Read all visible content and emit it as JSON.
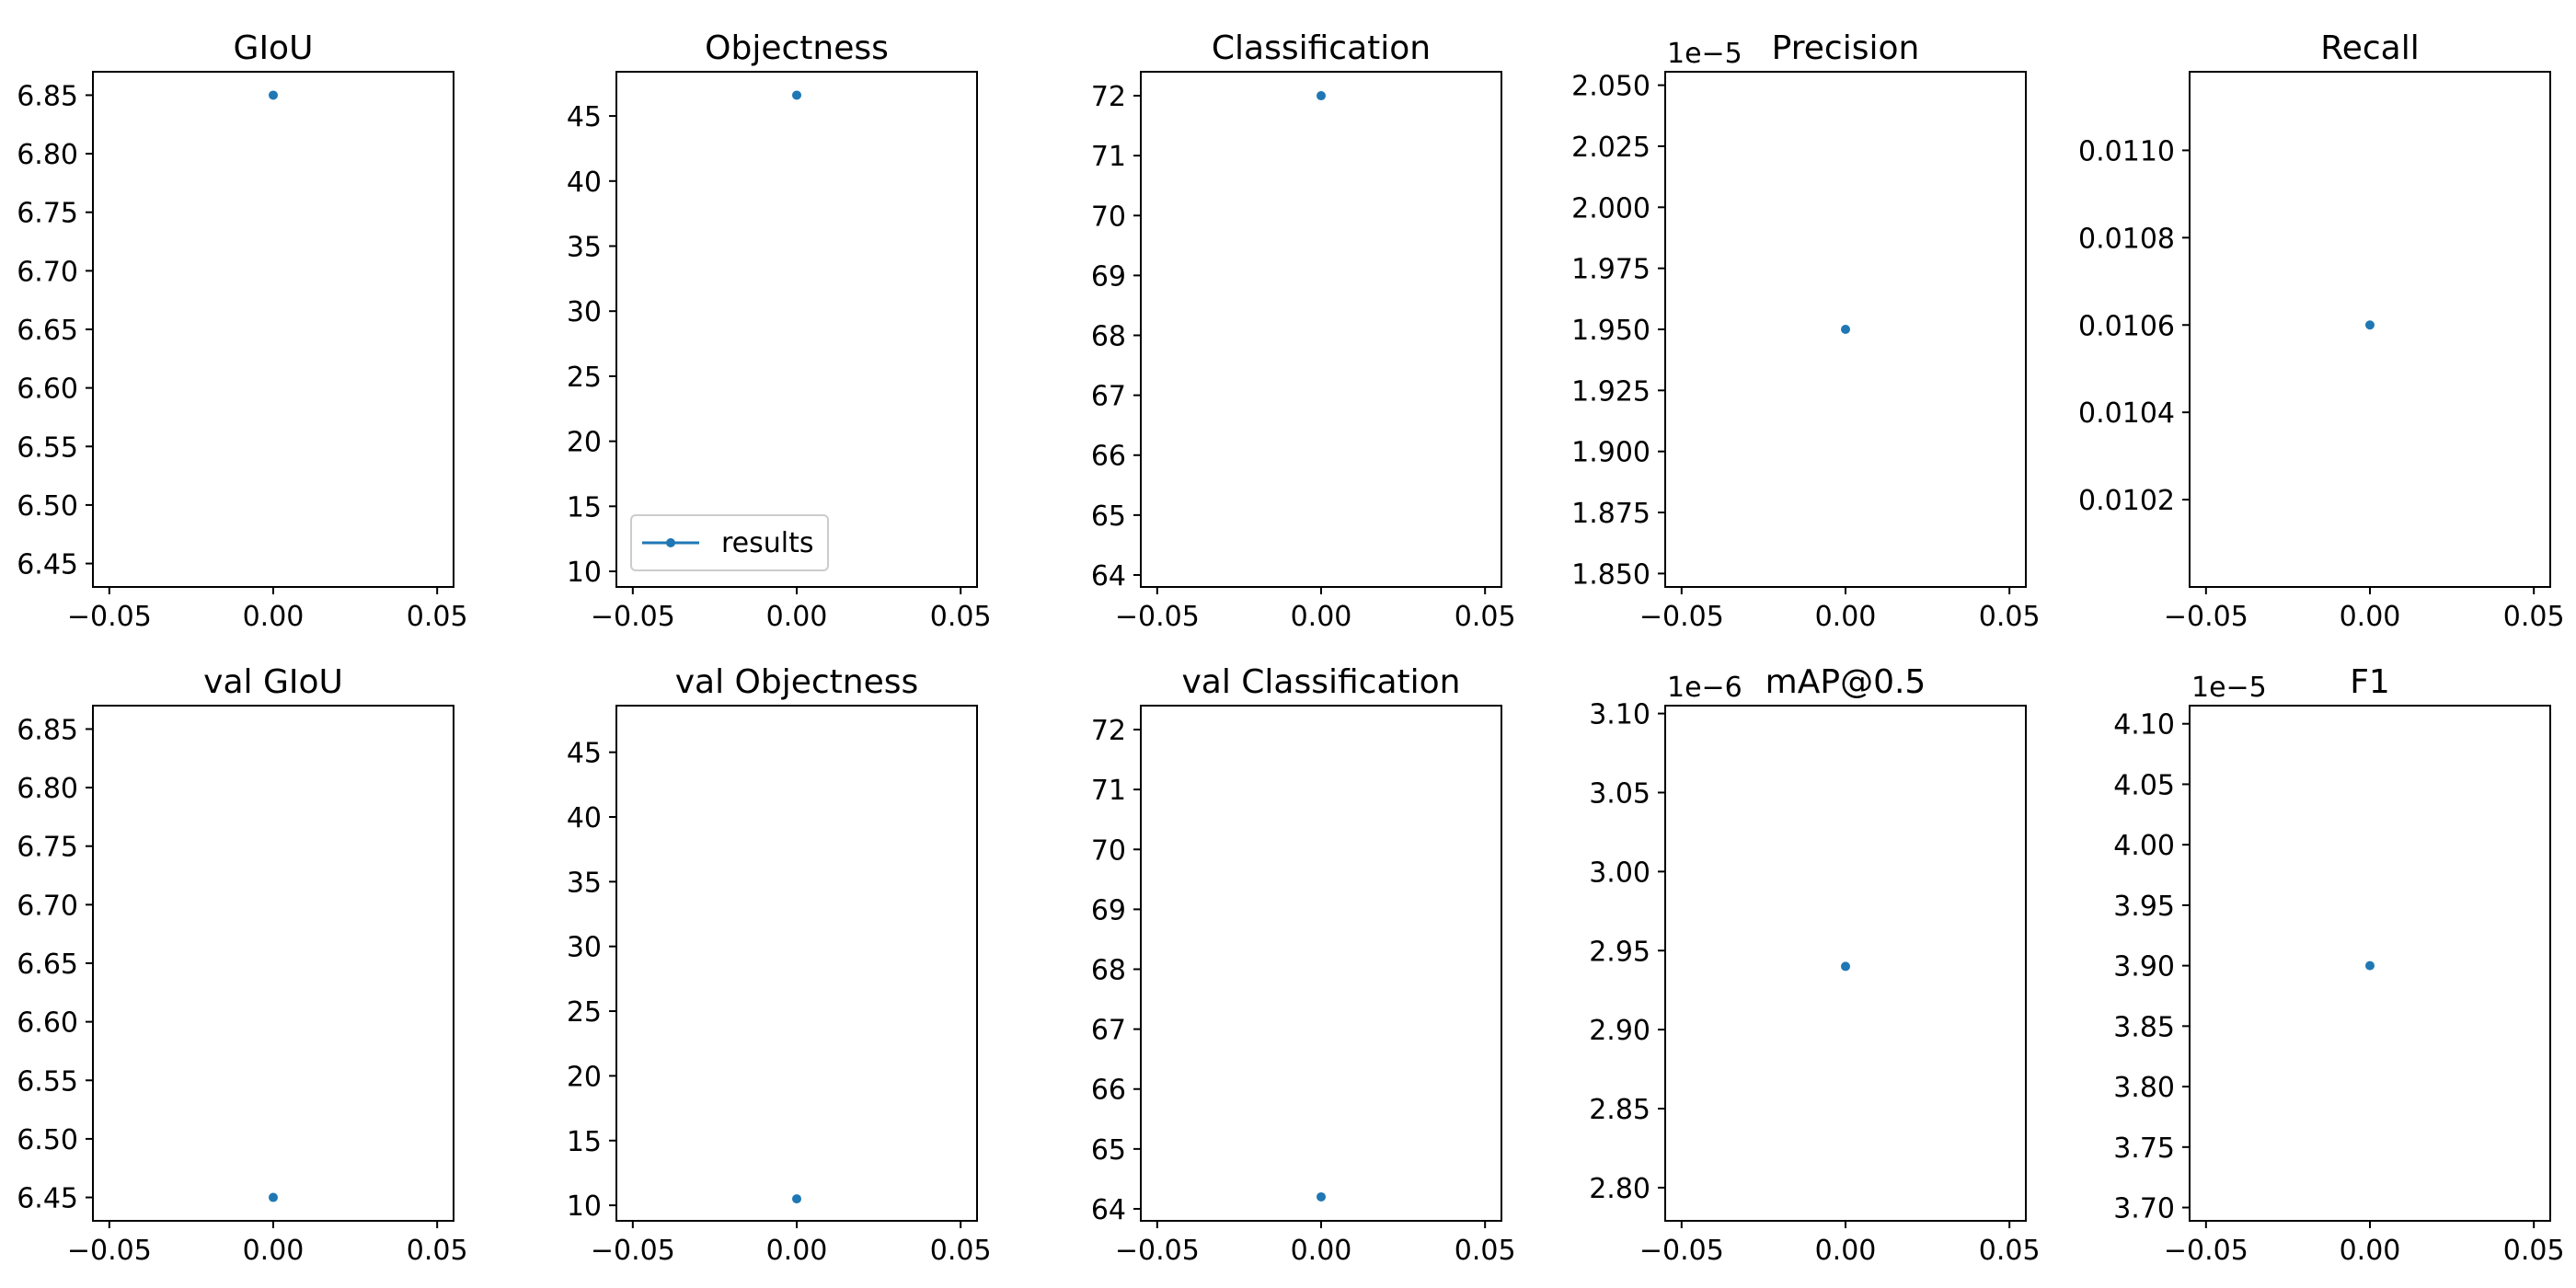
{
  "colors": {
    "series": "#1f77b4",
    "axes": "#000000",
    "background": "#ffffff",
    "legend_border": "#cccccc"
  },
  "chart_data": [
    {
      "type": "line",
      "title": "GIoU",
      "series": [
        {
          "name": "results",
          "x": [
            0.0
          ],
          "y": [
            6.85
          ]
        }
      ],
      "xlim": [
        -0.055,
        0.055
      ],
      "ylim": [
        6.43,
        6.87
      ],
      "xticks": [
        -0.05,
        0.0,
        0.05
      ],
      "xtick_labels": [
        "−0.05",
        "0.00",
        "0.05"
      ],
      "yticks": [
        6.45,
        6.5,
        6.55,
        6.6,
        6.65,
        6.7,
        6.75,
        6.8,
        6.85
      ],
      "ytick_labels": [
        "6.45",
        "6.50",
        "6.55",
        "6.60",
        "6.65",
        "6.70",
        "6.75",
        "6.80",
        "6.85"
      ],
      "offset_text": "",
      "legend": false
    },
    {
      "type": "line",
      "title": "Objectness",
      "series": [
        {
          "name": "results",
          "x": [
            0.0
          ],
          "y": [
            46.6
          ]
        }
      ],
      "xlim": [
        -0.055,
        0.055
      ],
      "ylim": [
        8.8,
        48.4
      ],
      "xticks": [
        -0.05,
        0.0,
        0.05
      ],
      "xtick_labels": [
        "−0.05",
        "0.00",
        "0.05"
      ],
      "yticks": [
        10,
        15,
        20,
        25,
        30,
        35,
        40,
        45
      ],
      "ytick_labels": [
        "10",
        "15",
        "20",
        "25",
        "30",
        "35",
        "40",
        "45"
      ],
      "offset_text": "",
      "legend": true,
      "legend_placement": "lower-left"
    },
    {
      "type": "line",
      "title": "Classification",
      "series": [
        {
          "name": "results",
          "x": [
            0.0
          ],
          "y": [
            72.0
          ]
        }
      ],
      "xlim": [
        -0.055,
        0.055
      ],
      "ylim": [
        63.8,
        72.4
      ],
      "xticks": [
        -0.05,
        0.0,
        0.05
      ],
      "xtick_labels": [
        "−0.05",
        "0.00",
        "0.05"
      ],
      "yticks": [
        64,
        65,
        66,
        67,
        68,
        69,
        70,
        71,
        72
      ],
      "ytick_labels": [
        "64",
        "65",
        "66",
        "67",
        "68",
        "69",
        "70",
        "71",
        "72"
      ],
      "offset_text": "",
      "legend": false
    },
    {
      "type": "line",
      "title": "Precision",
      "series": [
        {
          "name": "results",
          "x": [
            0.0
          ],
          "y": [
            1.95
          ]
        }
      ],
      "xlim": [
        -0.055,
        0.055
      ],
      "ylim": [
        1.8445,
        2.0555
      ],
      "xticks": [
        -0.05,
        0.0,
        0.05
      ],
      "xtick_labels": [
        "−0.05",
        "0.00",
        "0.05"
      ],
      "yticks": [
        1.85,
        1.875,
        1.9,
        1.925,
        1.95,
        1.975,
        2.0,
        2.025,
        2.05
      ],
      "ytick_labels": [
        "1.850",
        "1.875",
        "1.900",
        "1.925",
        "1.950",
        "1.975",
        "2.000",
        "2.025",
        "2.050"
      ],
      "offset_text": "1e−5",
      "legend": false
    },
    {
      "type": "line",
      "title": "Recall",
      "series": [
        {
          "name": "results",
          "x": [
            0.0
          ],
          "y": [
            0.0106
          ]
        }
      ],
      "xlim": [
        -0.055,
        0.055
      ],
      "ylim": [
        0.01,
        0.01118
      ],
      "xticks": [
        -0.05,
        0.0,
        0.05
      ],
      "xtick_labels": [
        "−0.05",
        "0.00",
        "0.05"
      ],
      "yticks": [
        0.0102,
        0.0104,
        0.0106,
        0.0108,
        0.011
      ],
      "ytick_labels": [
        "0.0102",
        "0.0104",
        "0.0106",
        "0.0108",
        "0.0110"
      ],
      "offset_text": "",
      "legend": false
    },
    {
      "type": "line",
      "title": "val GIoU",
      "series": [
        {
          "name": "results",
          "x": [
            0.0
          ],
          "y": [
            6.45
          ]
        }
      ],
      "xlim": [
        -0.055,
        0.055
      ],
      "ylim": [
        6.43,
        6.87
      ],
      "xticks": [
        -0.05,
        0.0,
        0.05
      ],
      "xtick_labels": [
        "−0.05",
        "0.00",
        "0.05"
      ],
      "yticks": [
        6.45,
        6.5,
        6.55,
        6.6,
        6.65,
        6.7,
        6.75,
        6.8,
        6.85
      ],
      "ytick_labels": [
        "6.45",
        "6.50",
        "6.55",
        "6.60",
        "6.65",
        "6.70",
        "6.75",
        "6.80",
        "6.85"
      ],
      "offset_text": "",
      "legend": false
    },
    {
      "type": "line",
      "title": "val Objectness",
      "series": [
        {
          "name": "results",
          "x": [
            0.0
          ],
          "y": [
            10.5
          ]
        }
      ],
      "xlim": [
        -0.055,
        0.055
      ],
      "ylim": [
        8.8,
        48.6
      ],
      "xticks": [
        -0.05,
        0.0,
        0.05
      ],
      "xtick_labels": [
        "−0.05",
        "0.00",
        "0.05"
      ],
      "yticks": [
        10,
        15,
        20,
        25,
        30,
        35,
        40,
        45
      ],
      "ytick_labels": [
        "10",
        "15",
        "20",
        "25",
        "30",
        "35",
        "40",
        "45"
      ],
      "offset_text": "",
      "legend": false
    },
    {
      "type": "line",
      "title": "val Classification",
      "series": [
        {
          "name": "results",
          "x": [
            0.0
          ],
          "y": [
            64.2
          ]
        }
      ],
      "xlim": [
        -0.055,
        0.055
      ],
      "ylim": [
        63.8,
        72.4
      ],
      "xticks": [
        -0.05,
        0.0,
        0.05
      ],
      "xtick_labels": [
        "−0.05",
        "0.00",
        "0.05"
      ],
      "yticks": [
        64,
        65,
        66,
        67,
        68,
        69,
        70,
        71,
        72
      ],
      "ytick_labels": [
        "64",
        "65",
        "66",
        "67",
        "68",
        "69",
        "70",
        "71",
        "72"
      ],
      "offset_text": "",
      "legend": false
    },
    {
      "type": "line",
      "title": "mAP@0.5",
      "series": [
        {
          "name": "results",
          "x": [
            0.0
          ],
          "y": [
            2.94
          ]
        }
      ],
      "xlim": [
        -0.055,
        0.055
      ],
      "ylim": [
        2.779,
        3.105
      ],
      "xticks": [
        -0.05,
        0.0,
        0.05
      ],
      "xtick_labels": [
        "−0.05",
        "0.00",
        "0.05"
      ],
      "yticks": [
        2.8,
        2.85,
        2.9,
        2.95,
        3.0,
        3.05,
        3.1
      ],
      "ytick_labels": [
        "2.80",
        "2.85",
        "2.90",
        "2.95",
        "3.00",
        "3.05",
        "3.10"
      ],
      "offset_text": "1e−6",
      "legend": false
    },
    {
      "type": "line",
      "title": "F1",
      "series": [
        {
          "name": "results",
          "x": [
            0.0
          ],
          "y": [
            3.9
          ]
        }
      ],
      "xlim": [
        -0.055,
        0.055
      ],
      "ylim": [
        3.689,
        4.115
      ],
      "xticks": [
        -0.05,
        0.0,
        0.05
      ],
      "xtick_labels": [
        "−0.05",
        "0.00",
        "0.05"
      ],
      "yticks": [
        3.7,
        3.75,
        3.8,
        3.85,
        3.9,
        3.95,
        4.0,
        4.05,
        4.1
      ],
      "ytick_labels": [
        "3.70",
        "3.75",
        "3.80",
        "3.85",
        "3.90",
        "3.95",
        "4.00",
        "4.05",
        "4.10"
      ],
      "offset_text": "1e−5",
      "legend": false
    }
  ]
}
